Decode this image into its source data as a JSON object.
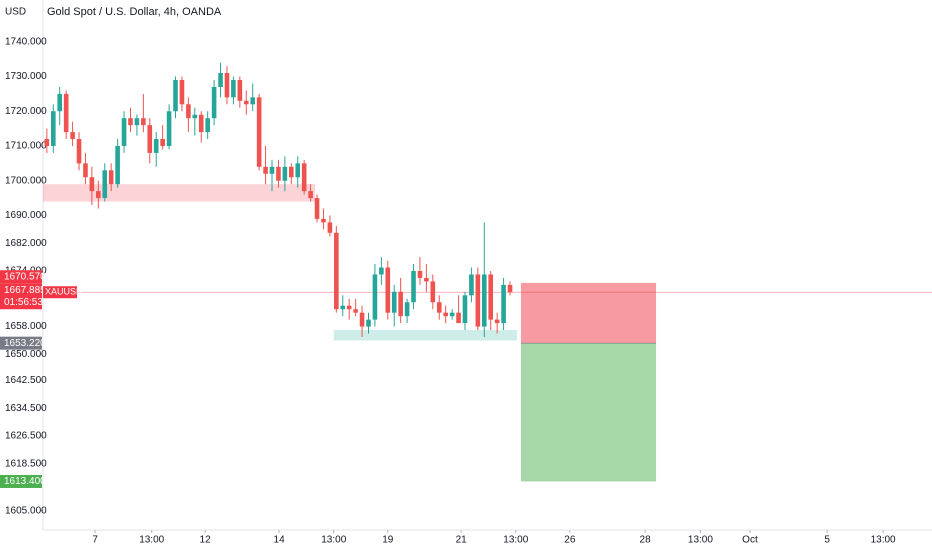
{
  "chart_data": {
    "type": "candlestick",
    "title": "Gold Spot / U.S. Dollar, 4h, OANDA",
    "currency": "USD",
    "open": [
      1712,
      1710,
      1720,
      1725,
      1714,
      1712,
      1705,
      1701,
      1697,
      1695,
      1703,
      1699,
      1710,
      1718,
      1716,
      1718,
      1716,
      1708,
      1712,
      1710,
      1720,
      1729,
      1722,
      1718,
      1719,
      1714,
      1718,
      1727,
      1731,
      1724,
      1729,
      1723,
      1722,
      1724,
      1704,
      1702,
      1704,
      1700,
      1704,
      1701,
      1705,
      1697,
      1695,
      1689,
      1688,
      1685,
      1663,
      1664,
      1663,
      1662,
      1658,
      1660,
      1673,
      1675,
      1662,
      1668,
      1661,
      1665,
      1674,
      1672,
      1671,
      1665,
      1662,
      1661,
      1662,
      1659,
      1667,
      1673,
      1658,
      1673,
      1660,
      1659,
      1670
    ],
    "high": [
      1715,
      1722,
      1727,
      1726,
      1717,
      1714,
      1708,
      1704,
      1700,
      1705,
      1705,
      1712,
      1720,
      1721,
      1719,
      1725,
      1718,
      1714,
      1716,
      1722,
      1730,
      1730,
      1724,
      1721,
      1720,
      1720,
      1729,
      1734,
      1733,
      1730,
      1730,
      1726,
      1728,
      1725,
      1710,
      1706,
      1706,
      1707,
      1705,
      1707,
      1706,
      1699,
      1696,
      1692,
      1690,
      1687,
      1667,
      1666,
      1666,
      1664,
      1662,
      1676,
      1678,
      1677,
      1670,
      1672,
      1666,
      1676,
      1678,
      1676,
      1673,
      1667,
      1664,
      1663,
      1667,
      1668,
      1675,
      1675,
      1688,
      1674,
      1662,
      1672,
      1671
    ],
    "low": [
      1708,
      1708,
      1716,
      1712,
      1710,
      1703,
      1699,
      1693,
      1692,
      1694,
      1697,
      1698,
      1708,
      1714,
      1713,
      1714,
      1705,
      1704,
      1709,
      1709,
      1718,
      1720,
      1714,
      1713,
      1711,
      1712,
      1716,
      1724,
      1722,
      1722,
      1721,
      1719,
      1720,
      1703,
      1699,
      1697,
      1698,
      1697,
      1699,
      1698,
      1696,
      1694,
      1688,
      1686,
      1684,
      1662,
      1661,
      1660,
      1661,
      1655,
      1656,
      1658,
      1670,
      1660,
      1658,
      1659,
      1659,
      1663,
      1670,
      1668,
      1663,
      1660,
      1659,
      1660,
      1660,
      1657,
      1665,
      1657,
      1655,
      1657,
      1656,
      1657,
      1667
    ],
    "close": [
      1710,
      1720,
      1725,
      1714,
      1712,
      1705,
      1701,
      1697,
      1695,
      1703,
      1699,
      1710,
      1718,
      1716,
      1718,
      1716,
      1708,
      1712,
      1710,
      1720,
      1729,
      1722,
      1718,
      1719,
      1714,
      1718,
      1727,
      1731,
      1724,
      1729,
      1723,
      1722,
      1724,
      1704,
      1702,
      1704,
      1700,
      1704,
      1701,
      1705,
      1697,
      1695,
      1689,
      1688,
      1685,
      1663,
      1664,
      1663,
      1662,
      1658,
      1660,
      1673,
      1675,
      1662,
      1668,
      1661,
      1665,
      1674,
      1672,
      1671,
      1665,
      1662,
      1661,
      1662,
      1659,
      1667,
      1673,
      1658,
      1673,
      1660,
      1659,
      1670,
      1667.885
    ],
    "up_color": "#26a69a",
    "down_color": "#ef5350",
    "xlim": [
      -0.6,
      137.6
    ],
    "ylim": [
      1600,
      1748
    ],
    "yticks": [
      {
        "value": 1740,
        "label": "1740.000"
      },
      {
        "value": 1730,
        "label": "1730.000"
      },
      {
        "value": 1720,
        "label": "1720.000"
      },
      {
        "value": 1710,
        "label": "1710.000"
      },
      {
        "value": 1700,
        "label": "1700.000"
      },
      {
        "value": 1690,
        "label": "1690.000"
      },
      {
        "value": 1682,
        "label": "1682.000"
      },
      {
        "value": 1674,
        "label": "1674.000"
      },
      {
        "value": 1658,
        "label": "1658.000"
      },
      {
        "value": 1650,
        "label": "1650.000"
      },
      {
        "value": 1642.5,
        "label": "1642.500"
      },
      {
        "value": 1634.5,
        "label": "1634.500"
      },
      {
        "value": 1626.5,
        "label": "1626.500"
      },
      {
        "value": 1618.5,
        "label": "1618.500"
      },
      {
        "value": 1605,
        "label": "1605.000"
      }
    ],
    "xticks": [
      {
        "value": 7.5,
        "label": "7"
      },
      {
        "value": 16.3,
        "label": "13:00"
      },
      {
        "value": 24.6,
        "label": "12"
      },
      {
        "value": 36.1,
        "label": "14"
      },
      {
        "value": 44.6,
        "label": "13:00"
      },
      {
        "value": 53,
        "label": "19"
      },
      {
        "value": 64.4,
        "label": "21"
      },
      {
        "value": 72.9,
        "label": "13:00"
      },
      {
        "value": 81.3,
        "label": "26"
      },
      {
        "value": 93,
        "label": "28"
      },
      {
        "value": 101.6,
        "label": "13:00"
      },
      {
        "value": 109.3,
        "label": "Oct"
      },
      {
        "value": 121.3,
        "label": "5"
      },
      {
        "value": 130,
        "label": "13:00"
      }
    ],
    "zones": [
      {
        "from": -0.6,
        "to": 41.7,
        "low": 1694,
        "high": 1699,
        "color": "rgba(242,54,69,0.22)"
      },
      {
        "from": 44.6,
        "to": 73.1,
        "low": 1654,
        "high": 1657,
        "color": "rgba(34,171,148,0.22)"
      }
    ],
    "position": {
      "from": 73.7,
      "to": 94.7,
      "stop": 1670.57,
      "entry": 1653.22,
      "target": 1613.4,
      "risk_color": "rgba(242,54,69,0.5)",
      "reward_color": "rgba(76,175,80,0.5)"
    },
    "current_price": {
      "value": 1667.885,
      "label": "1667.885",
      "symbol": "XAUUSD",
      "countdown": "01:56:53",
      "color": "#f23645"
    },
    "price_labels": [
      {
        "value": 1670.57,
        "label": "1670.570",
        "color": "#f23645"
      },
      {
        "value": 1653.22,
        "label": "1653.220",
        "color": "#787b86"
      },
      {
        "value": 1613.4,
        "label": "1613.400",
        "color": "#4caf50"
      }
    ]
  }
}
